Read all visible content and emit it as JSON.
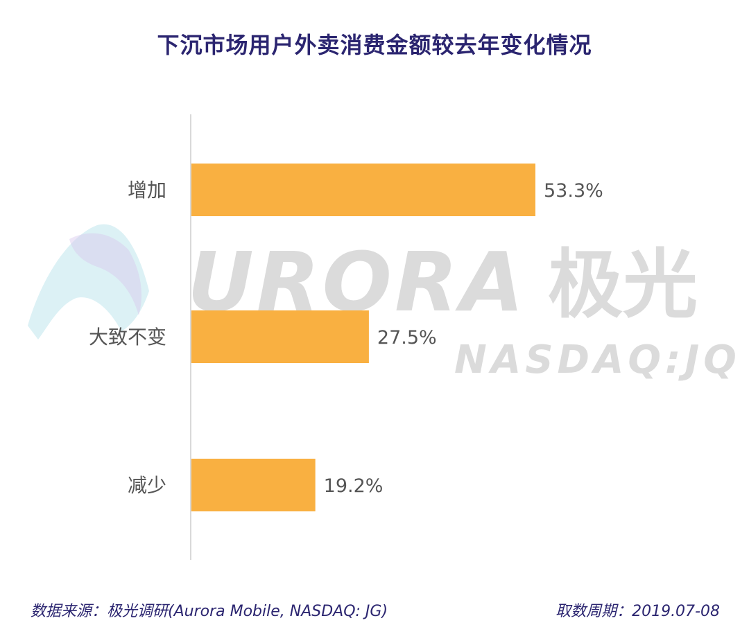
{
  "title": "下沉市场用户外卖消费金额较去年变化情况",
  "chart_data": {
    "type": "bar",
    "orientation": "horizontal",
    "categories": [
      "增加",
      "大致不变",
      "减少"
    ],
    "values": [
      53.3,
      27.5,
      19.2
    ],
    "value_labels": [
      "53.3%",
      "27.5%",
      "19.2%"
    ],
    "unit": "%",
    "xlim": [
      0,
      80
    ],
    "grid": false,
    "bar_color": "#f9b041"
  },
  "watermark": {
    "text": "URORA",
    "cn": "极光",
    "sub": "NASDAQ:JQ"
  },
  "footer": {
    "source": "数据来源：极光调研(Aurora Mobile, NASDAQ: JG)",
    "date": "取数周期：2019.07-08"
  },
  "colors": {
    "title": "#2b2570",
    "bar": "#f9b041",
    "axis": "#d9d9d9",
    "label": "#555555"
  }
}
